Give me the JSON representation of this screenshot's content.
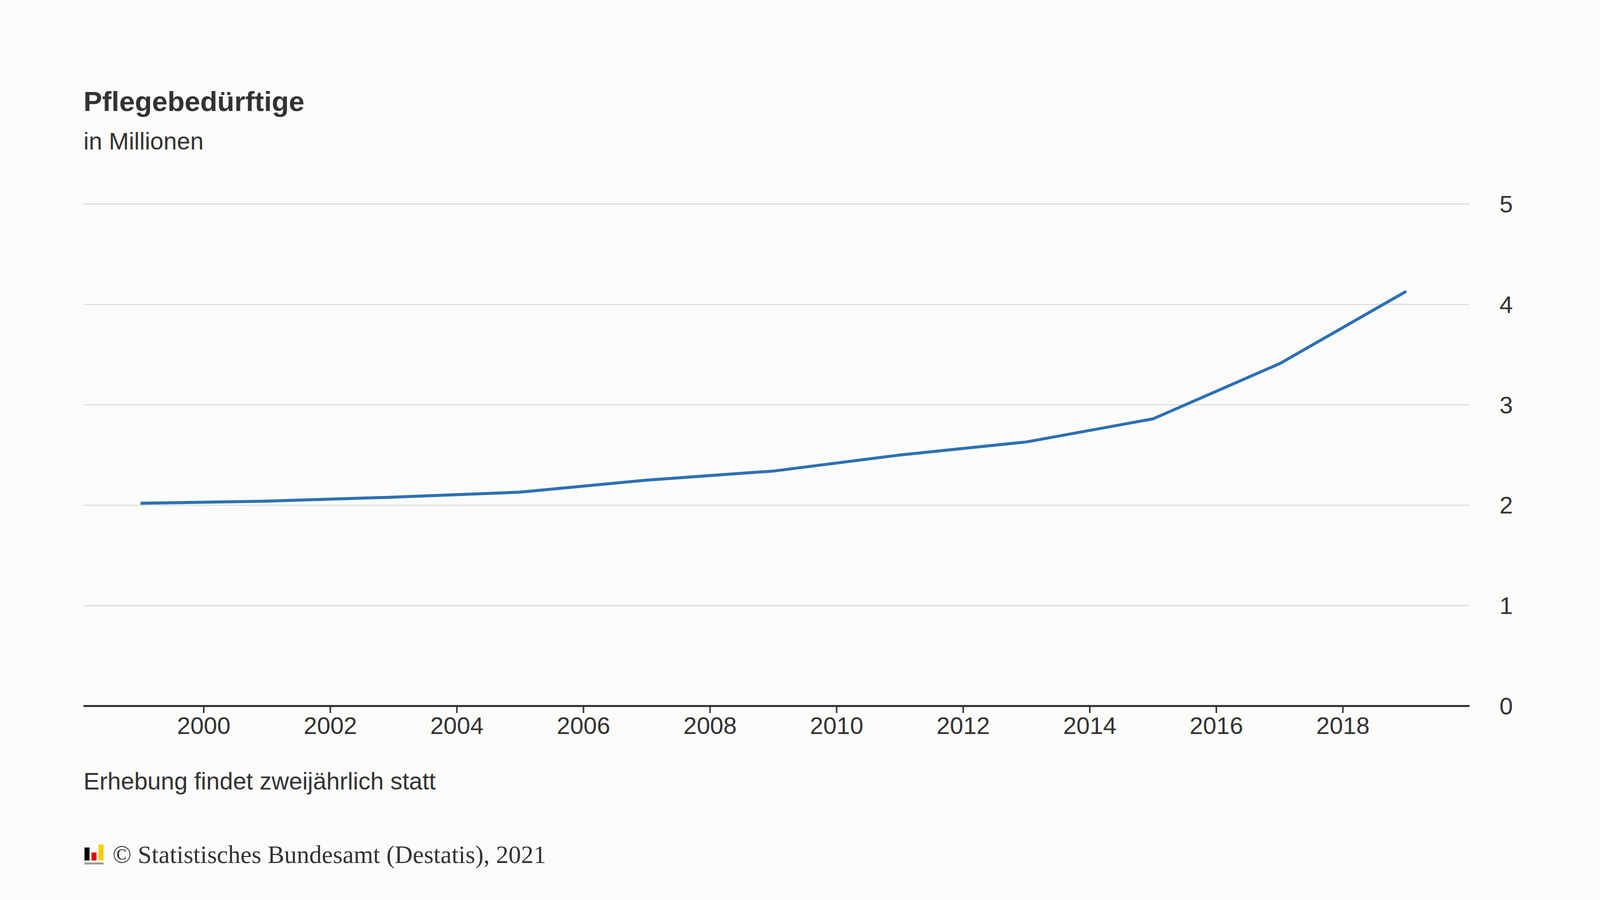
{
  "chart_data": {
    "type": "line",
    "title": "Pflegebedürftige",
    "subtitle": "in Millionen",
    "note": "Erhebung findet zweijährlich statt",
    "source": "© Statistisches Bundesamt (Destatis), 2021",
    "x": [
      1999,
      2001,
      2003,
      2005,
      2007,
      2009,
      2011,
      2013,
      2015,
      2017,
      2019
    ],
    "values": [
      2.02,
      2.04,
      2.08,
      2.13,
      2.25,
      2.34,
      2.5,
      2.63,
      2.86,
      3.41,
      4.13
    ],
    "color": "#2e70b3",
    "xlim": [
      1998.1,
      2020
    ],
    "xticks": [
      2000,
      2002,
      2004,
      2006,
      2008,
      2010,
      2012,
      2014,
      2016,
      2018
    ],
    "ylim": [
      0,
      5
    ],
    "yticks": [
      0,
      1,
      2,
      3,
      4,
      5
    ],
    "grid": true
  }
}
